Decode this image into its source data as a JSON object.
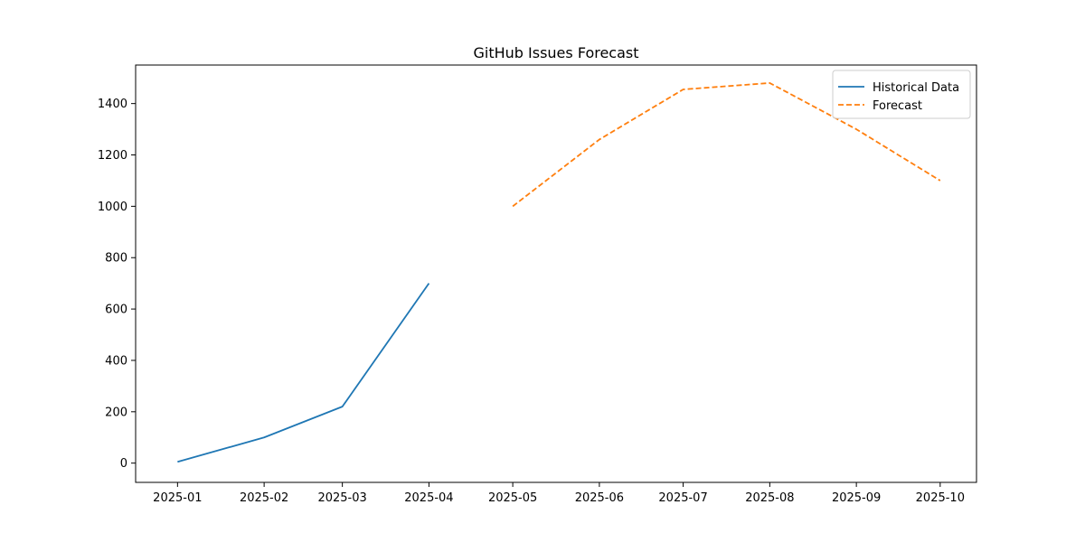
{
  "chart_data": {
    "type": "line",
    "title": "GitHub Issues Forecast",
    "xlabel": "",
    "ylabel": "",
    "x_ticks": [
      "2025-01",
      "2025-02",
      "2025-03",
      "2025-04",
      "2025-05",
      "2025-06",
      "2025-07",
      "2025-08",
      "2025-09",
      "2025-10"
    ],
    "y_ticks": [
      "0",
      "200",
      "400",
      "600",
      "800",
      "1000",
      "1200",
      "1400"
    ],
    "xlim": [
      "2024-12-17",
      "2025-10-14"
    ],
    "ylim": [
      -75,
      1550
    ],
    "grid": false,
    "legend_position": "upper right",
    "series": [
      {
        "name": "Historical Data",
        "color": "#1f77b4",
        "linestyle": "solid",
        "x": [
          "2025-01-01",
          "2025-02-01",
          "2025-03-01",
          "2025-04-01"
        ],
        "y": [
          5,
          100,
          220,
          700
        ]
      },
      {
        "name": "Forecast",
        "color": "#ff7f0e",
        "linestyle": "dashed",
        "x": [
          "2025-05-01",
          "2025-06-01",
          "2025-07-01",
          "2025-08-01",
          "2025-09-01",
          "2025-10-01"
        ],
        "y": [
          1000,
          1260,
          1455,
          1480,
          1300,
          1100
        ]
      }
    ]
  }
}
